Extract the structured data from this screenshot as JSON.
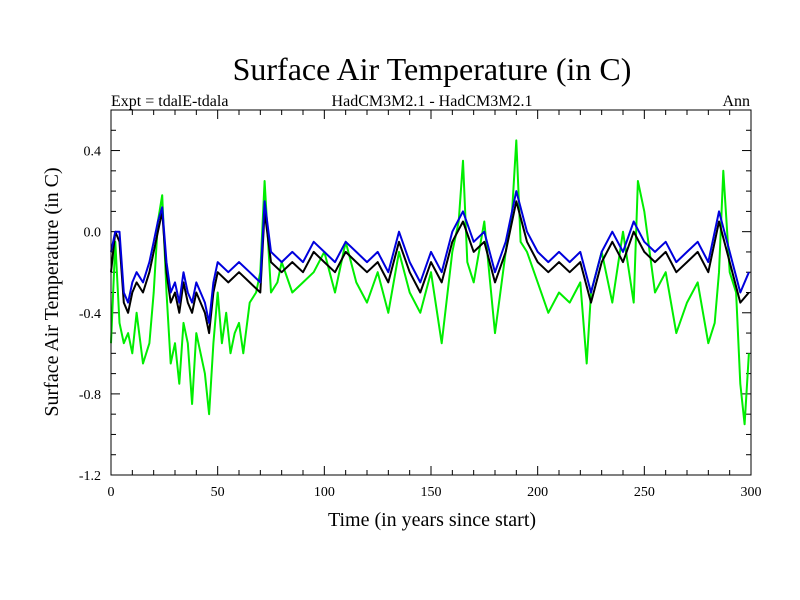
{
  "chart_data": {
    "type": "line",
    "title": "Surface Air Temperature (in C)",
    "subtitle_left": "Expt = tdalE-tdala",
    "subtitle_center": "HadCM3M2.1 - HadCM3M2.1",
    "subtitle_right": "Ann",
    "xlabel": "Time (in years since start)",
    "ylabel": "Surface Air Temperature (in C)",
    "xlim": [
      0,
      300
    ],
    "ylim": [
      -1.2,
      0.6
    ],
    "xticks": [
      0,
      50,
      100,
      150,
      200,
      250,
      300
    ],
    "xtick_labels": [
      "0",
      "50",
      "100",
      "150",
      "200",
      "250",
      "300"
    ],
    "yticks": [
      -1.2,
      -0.8,
      -0.4,
      0.0,
      0.4
    ],
    "ytick_labels": [
      "-1.2",
      "-0.8",
      "-0.4",
      "0.0",
      "0.4"
    ],
    "grid": false,
    "series": [
      {
        "name": "green",
        "color": "#00ee00",
        "x": [
          0,
          2,
          4,
          6,
          8,
          10,
          12,
          15,
          18,
          20,
          22,
          24,
          26,
          28,
          30,
          32,
          34,
          36,
          38,
          40,
          42,
          44,
          46,
          48,
          50,
          52,
          54,
          56,
          58,
          60,
          62,
          65,
          68,
          70,
          72,
          75,
          78,
          80,
          85,
          90,
          95,
          100,
          105,
          110,
          115,
          120,
          125,
          130,
          135,
          140,
          145,
          150,
          155,
          160,
          163,
          165,
          167,
          170,
          175,
          180,
          185,
          188,
          190,
          192,
          195,
          200,
          205,
          210,
          215,
          220,
          223,
          225,
          230,
          235,
          240,
          245,
          247,
          250,
          255,
          260,
          265,
          270,
          275,
          280,
          283,
          285,
          287,
          290,
          293,
          295,
          297,
          299
        ],
        "y": [
          -0.55,
          -0.05,
          -0.45,
          -0.55,
          -0.5,
          -0.6,
          -0.4,
          -0.65,
          -0.55,
          -0.3,
          0.05,
          0.18,
          -0.3,
          -0.65,
          -0.55,
          -0.75,
          -0.45,
          -0.55,
          -0.85,
          -0.5,
          -0.6,
          -0.7,
          -0.9,
          -0.55,
          -0.3,
          -0.55,
          -0.4,
          -0.6,
          -0.5,
          -0.45,
          -0.6,
          -0.35,
          -0.3,
          -0.2,
          0.25,
          -0.3,
          -0.25,
          -0.15,
          -0.3,
          -0.25,
          -0.2,
          -0.1,
          -0.3,
          -0.05,
          -0.25,
          -0.35,
          -0.2,
          -0.4,
          -0.1,
          -0.3,
          -0.4,
          -0.2,
          -0.55,
          -0.1,
          0.05,
          0.35,
          -0.15,
          -0.25,
          0.05,
          -0.5,
          -0.1,
          0.1,
          0.45,
          -0.05,
          -0.1,
          -0.25,
          -0.4,
          -0.3,
          -0.35,
          -0.25,
          -0.65,
          -0.3,
          -0.1,
          -0.35,
          0.0,
          -0.35,
          0.25,
          0.1,
          -0.3,
          -0.2,
          -0.5,
          -0.35,
          -0.25,
          -0.55,
          -0.45,
          -0.2,
          0.3,
          -0.2,
          -0.3,
          -0.75,
          -0.95,
          -0.6
        ]
      },
      {
        "name": "black",
        "color": "#000000",
        "x": [
          0,
          2,
          4,
          6,
          8,
          10,
          12,
          15,
          18,
          20,
          22,
          24,
          26,
          28,
          30,
          32,
          34,
          36,
          38,
          40,
          42,
          44,
          46,
          48,
          50,
          55,
          60,
          65,
          70,
          72,
          75,
          80,
          85,
          90,
          95,
          100,
          105,
          110,
          115,
          120,
          125,
          130,
          135,
          140,
          145,
          150,
          155,
          160,
          165,
          170,
          175,
          180,
          185,
          190,
          195,
          200,
          205,
          210,
          215,
          220,
          225,
          230,
          235,
          240,
          245,
          250,
          255,
          260,
          265,
          270,
          275,
          280,
          285,
          290,
          295,
          299
        ],
        "y": [
          -0.2,
          0.0,
          -0.05,
          -0.35,
          -0.4,
          -0.3,
          -0.25,
          -0.3,
          -0.2,
          -0.1,
          0.0,
          0.1,
          -0.2,
          -0.35,
          -0.3,
          -0.4,
          -0.25,
          -0.35,
          -0.4,
          -0.3,
          -0.35,
          -0.4,
          -0.5,
          -0.3,
          -0.2,
          -0.25,
          -0.2,
          -0.25,
          -0.3,
          0.1,
          -0.15,
          -0.2,
          -0.15,
          -0.2,
          -0.1,
          -0.15,
          -0.2,
          -0.1,
          -0.15,
          -0.2,
          -0.15,
          -0.25,
          -0.05,
          -0.2,
          -0.3,
          -0.15,
          -0.25,
          -0.05,
          0.05,
          -0.1,
          -0.05,
          -0.25,
          -0.1,
          0.15,
          -0.05,
          -0.15,
          -0.2,
          -0.15,
          -0.2,
          -0.15,
          -0.35,
          -0.15,
          -0.05,
          -0.15,
          0.0,
          -0.1,
          -0.15,
          -0.1,
          -0.2,
          -0.15,
          -0.1,
          -0.2,
          0.05,
          -0.15,
          -0.35,
          -0.3
        ]
      },
      {
        "name": "blue",
        "color": "#0000dd",
        "x": [
          0,
          2,
          4,
          6,
          8,
          10,
          12,
          15,
          18,
          20,
          22,
          24,
          26,
          28,
          30,
          32,
          34,
          36,
          38,
          40,
          42,
          44,
          46,
          48,
          50,
          55,
          60,
          65,
          70,
          72,
          75,
          80,
          85,
          90,
          95,
          100,
          105,
          110,
          115,
          120,
          125,
          130,
          135,
          140,
          145,
          150,
          155,
          160,
          165,
          170,
          175,
          180,
          185,
          190,
          195,
          200,
          205,
          210,
          215,
          220,
          225,
          230,
          235,
          240,
          245,
          250,
          255,
          260,
          265,
          270,
          275,
          280,
          285,
          290,
          295,
          299
        ],
        "y": [
          -0.1,
          0.0,
          0.0,
          -0.3,
          -0.35,
          -0.25,
          -0.2,
          -0.25,
          -0.15,
          -0.05,
          0.05,
          0.12,
          -0.15,
          -0.3,
          -0.25,
          -0.35,
          -0.2,
          -0.3,
          -0.35,
          -0.25,
          -0.3,
          -0.35,
          -0.45,
          -0.25,
          -0.15,
          -0.2,
          -0.15,
          -0.2,
          -0.25,
          0.15,
          -0.1,
          -0.15,
          -0.1,
          -0.15,
          -0.05,
          -0.1,
          -0.15,
          -0.05,
          -0.1,
          -0.15,
          -0.1,
          -0.2,
          0.0,
          -0.15,
          -0.25,
          -0.1,
          -0.2,
          0.0,
          0.1,
          -0.05,
          0.0,
          -0.2,
          -0.05,
          0.2,
          0.0,
          -0.1,
          -0.15,
          -0.1,
          -0.15,
          -0.1,
          -0.3,
          -0.1,
          0.0,
          -0.1,
          0.05,
          -0.05,
          -0.1,
          -0.05,
          -0.15,
          -0.1,
          -0.05,
          -0.15,
          0.1,
          -0.1,
          -0.3,
          -0.2
        ]
      }
    ]
  }
}
